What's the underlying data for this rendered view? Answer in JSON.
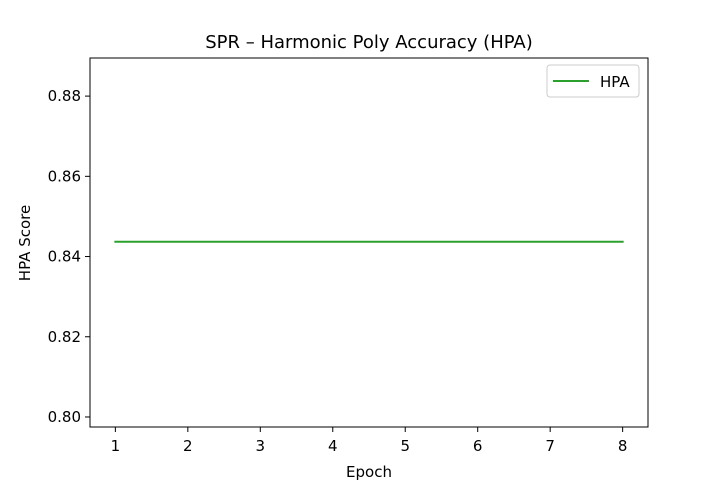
{
  "chart_data": {
    "type": "line",
    "title": "SPR – Harmonic Poly Accuracy (HPA)",
    "xlabel": "Epoch",
    "ylabel": "HPA Score",
    "x": [
      1,
      2,
      3,
      4,
      5,
      6,
      7,
      8
    ],
    "xlim": [
      0.65,
      8.35
    ],
    "ylim": [
      0.7975,
      0.8895
    ],
    "xticks": [
      1,
      2,
      3,
      4,
      5,
      6,
      7,
      8
    ],
    "yticks": [
      0.8,
      0.82,
      0.84,
      0.86,
      0.88
    ],
    "series": [
      {
        "name": "HPA",
        "color": "#2ca02c",
        "values": [
          0.8437,
          0.8437,
          0.8437,
          0.8437,
          0.8437,
          0.8437,
          0.8437,
          0.8437
        ]
      }
    ],
    "grid": false,
    "legend": "top-right"
  }
}
